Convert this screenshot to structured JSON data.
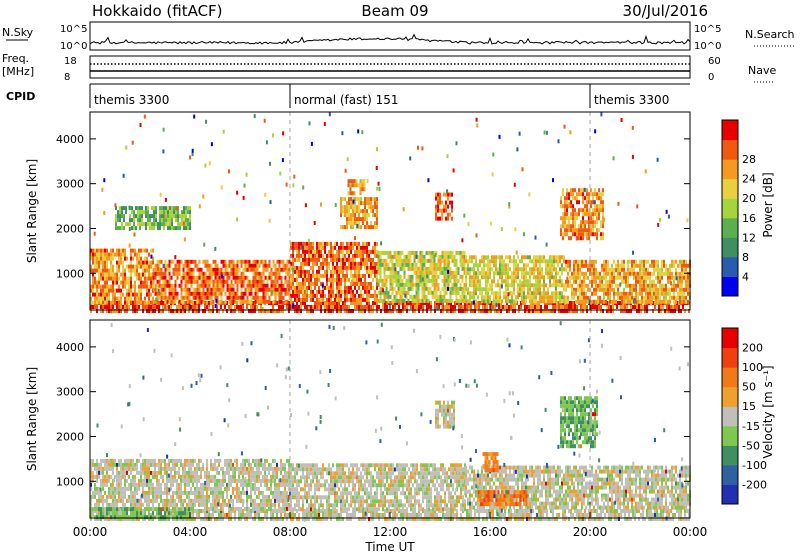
{
  "header": {
    "station": "Hokkaido (fitACF)",
    "beam": "Beam 09",
    "date": "30/Jul/2016"
  },
  "noise_panel": {
    "left_label": "N.Sky",
    "right_label": "N.Search",
    "ticks": [
      "10^5",
      "10^0"
    ]
  },
  "freq_panel": {
    "left_label_1": "Freq.",
    "left_label_2": "[MHz]",
    "left_ticks": [
      "18",
      "8"
    ],
    "right_label": "Nave",
    "right_ticks": [
      "60",
      "0"
    ]
  },
  "cpid_panel": {
    "label": "CPID",
    "segments": [
      {
        "name": "themis 3300",
        "start_hour": 0,
        "end_hour": 8
      },
      {
        "name": "normal (fast) 151",
        "start_hour": 8,
        "end_hour": 20
      },
      {
        "name": "themis 3300",
        "start_hour": 20,
        "end_hour": 24
      }
    ]
  },
  "chart_data": [
    {
      "type": "heatmap",
      "quantity": "power",
      "xlabel": "",
      "ylabel": "Slant Range [km]",
      "xlim": [
        0,
        24
      ],
      "ylim": [
        180,
        4600
      ],
      "yticks": [
        "1000",
        "2000",
        "3000",
        "4000"
      ],
      "colorbar_label": "Power [dB]",
      "colorbar_ticks": [
        "4",
        "8",
        "12",
        "16",
        "20",
        "24",
        "28"
      ],
      "colorbar_colors": [
        "#0000ee",
        "#2a5bb0",
        "#3f8f60",
        "#5cae50",
        "#a6d43c",
        "#e8d040",
        "#f59a20",
        "#f05a10",
        "#e80000"
      ],
      "echo_regions": [
        {
          "t0": 0.0,
          "t1": 24.0,
          "r0": 200,
          "r1": 380,
          "level": 0.85
        },
        {
          "t0": 0.0,
          "t1": 2.5,
          "r0": 380,
          "r1": 1550,
          "level": 0.75
        },
        {
          "t0": 2.5,
          "t1": 8.0,
          "r0": 380,
          "r1": 1300,
          "level": 0.8
        },
        {
          "t0": 8.0,
          "t1": 11.5,
          "r0": 380,
          "r1": 1700,
          "level": 0.8
        },
        {
          "t0": 11.5,
          "t1": 15.0,
          "r0": 380,
          "r1": 1500,
          "level": 0.55
        },
        {
          "t0": 15.0,
          "t1": 19.0,
          "r0": 380,
          "r1": 1400,
          "level": 0.6
        },
        {
          "t0": 19.0,
          "t1": 24.0,
          "r0": 380,
          "r1": 1300,
          "level": 0.7
        },
        {
          "t0": 10.0,
          "t1": 11.5,
          "r0": 2000,
          "r1": 2700,
          "level": 0.7
        },
        {
          "t0": 13.8,
          "t1": 14.5,
          "r0": 2200,
          "r1": 2800,
          "level": 0.85
        },
        {
          "t0": 18.8,
          "t1": 20.5,
          "r0": 1800,
          "r1": 2900,
          "level": 0.75
        },
        {
          "t0": 10.3,
          "t1": 11.0,
          "r0": 2800,
          "r1": 3100,
          "level": 0.7
        },
        {
          "t0": 1.0,
          "t1": 4.0,
          "r0": 2000,
          "r1": 2500,
          "level": 0.4
        }
      ]
    },
    {
      "type": "heatmap",
      "quantity": "velocity",
      "xlabel": "Time UT",
      "ylabel": "Slant Range [km]",
      "xlim": [
        0,
        24
      ],
      "ylim": [
        180,
        4600
      ],
      "xticks": [
        "00:00",
        "04:00",
        "08:00",
        "12:00",
        "16:00",
        "20:00",
        "00:00"
      ],
      "yticks": [
        "1000",
        "2000",
        "3000",
        "4000"
      ],
      "colorbar_label": "Velocity [m s⁻¹]",
      "colorbar_ticks": [
        "200",
        "100",
        "50",
        "15",
        "-15",
        "-50",
        "-100",
        "-200"
      ],
      "colorbar_colors": [
        "#2030b0",
        "#3060a0",
        "#3f8f60",
        "#7ec850",
        "#c0c0b8",
        "#f0a030",
        "#f07a18",
        "#f04010",
        "#e80000"
      ],
      "echo_regions": [
        {
          "t0": 0.0,
          "t1": 24.0,
          "r0": 200,
          "r1": 380,
          "level": 0.5
        },
        {
          "t0": 0.0,
          "t1": 8.0,
          "r0": 380,
          "r1": 1500,
          "level": 0.5
        },
        {
          "t0": 8.0,
          "t1": 15.0,
          "r0": 380,
          "r1": 1400,
          "level": 0.5
        },
        {
          "t0": 15.0,
          "t1": 24.0,
          "r0": 380,
          "r1": 1350,
          "level": 0.5
        },
        {
          "t0": 15.7,
          "t1": 16.3,
          "r0": 1250,
          "r1": 1650,
          "level": 0.7
        },
        {
          "t0": 15.5,
          "t1": 17.5,
          "r0": 500,
          "r1": 800,
          "level": 0.72
        },
        {
          "t0": 18.8,
          "t1": 20.3,
          "r0": 1800,
          "r1": 2900,
          "level": 0.35
        },
        {
          "t0": 13.8,
          "t1": 14.6,
          "r0": 2200,
          "r1": 2800,
          "level": 0.5
        },
        {
          "t0": 0.0,
          "t1": 4.0,
          "r0": 200,
          "r1": 420,
          "level": 0.35
        }
      ]
    }
  ]
}
